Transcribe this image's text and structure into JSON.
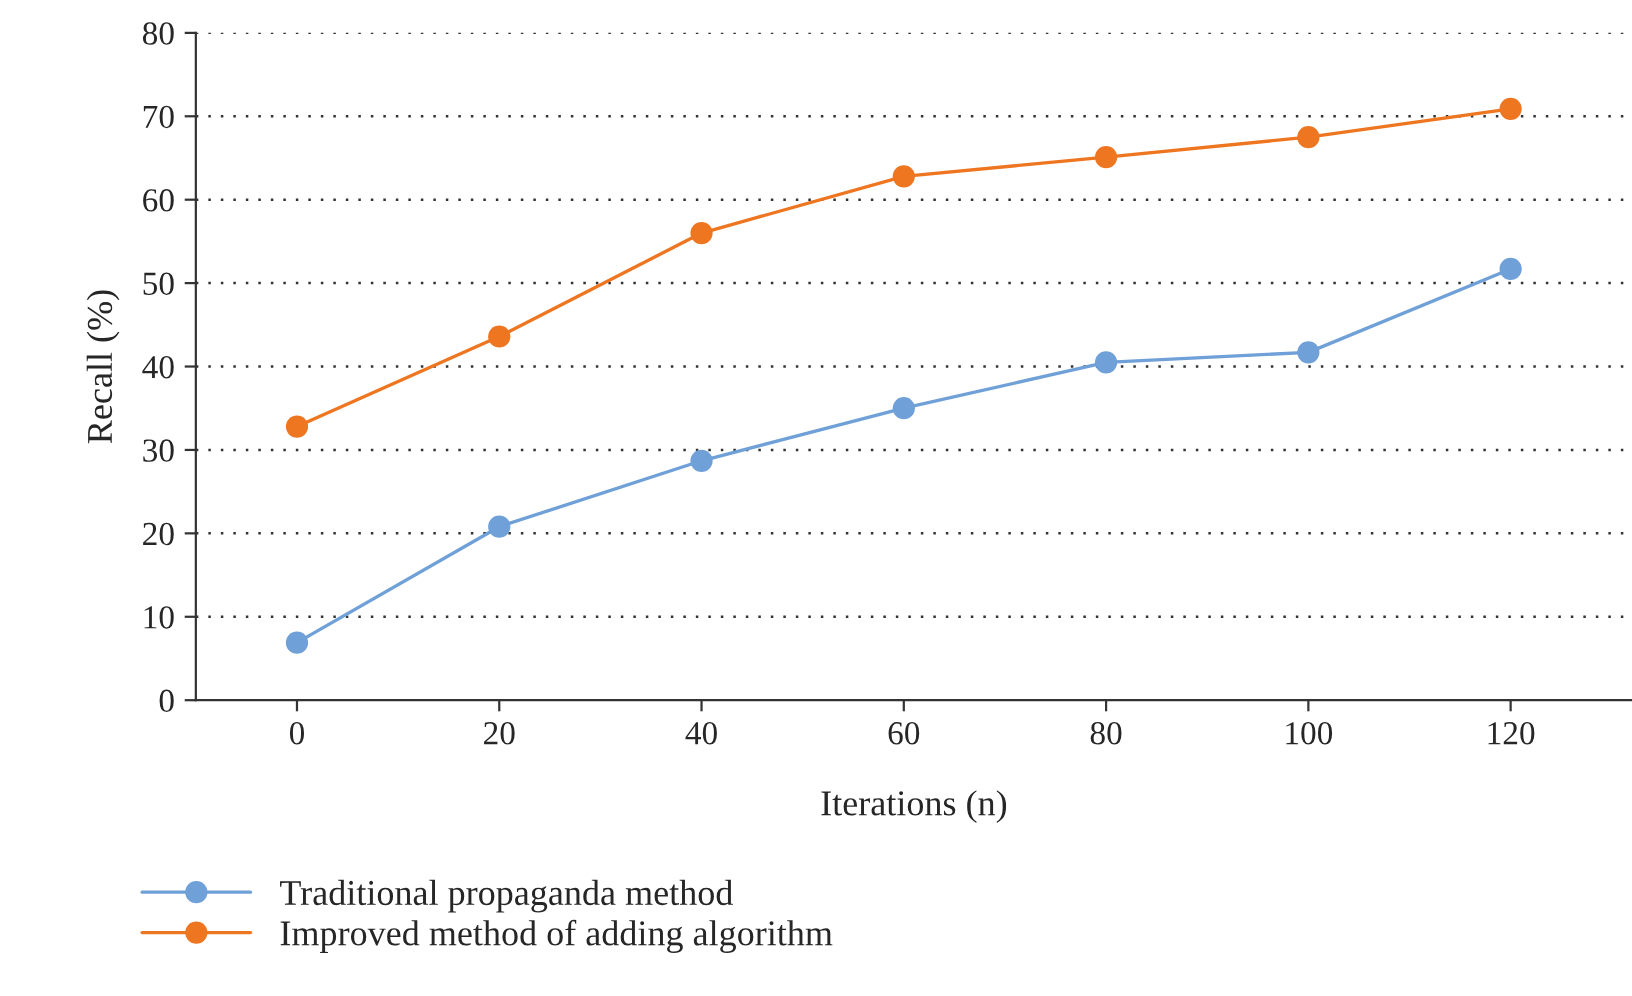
{
  "chart_data": {
    "type": "line",
    "xlabel": "Iterations (n)",
    "ylabel": "Recall (%)",
    "x": [
      0,
      20,
      40,
      60,
      80,
      100,
      120
    ],
    "series": [
      {
        "name": "Traditional propaganda method",
        "color": "#6fa0d8",
        "values": [
          6.9,
          20.8,
          28.7,
          35.0,
          40.5,
          41.7,
          51.7
        ]
      },
      {
        "name": "Improved method of adding algorithm",
        "color": "#ee7621",
        "values": [
          32.8,
          43.6,
          56.0,
          62.8,
          65.1,
          67.5,
          70.9
        ]
      }
    ],
    "xlim": [
      -10,
      132
    ],
    "xticks": [
      0,
      20,
      40,
      60,
      80,
      100,
      120
    ],
    "ylim": [
      0,
      80
    ],
    "yticks": [
      0,
      10,
      20,
      30,
      40,
      50,
      60,
      70,
      80
    ],
    "grid": "y",
    "legend": "bottom left",
    "marker": "circle",
    "line_style": "solid"
  }
}
